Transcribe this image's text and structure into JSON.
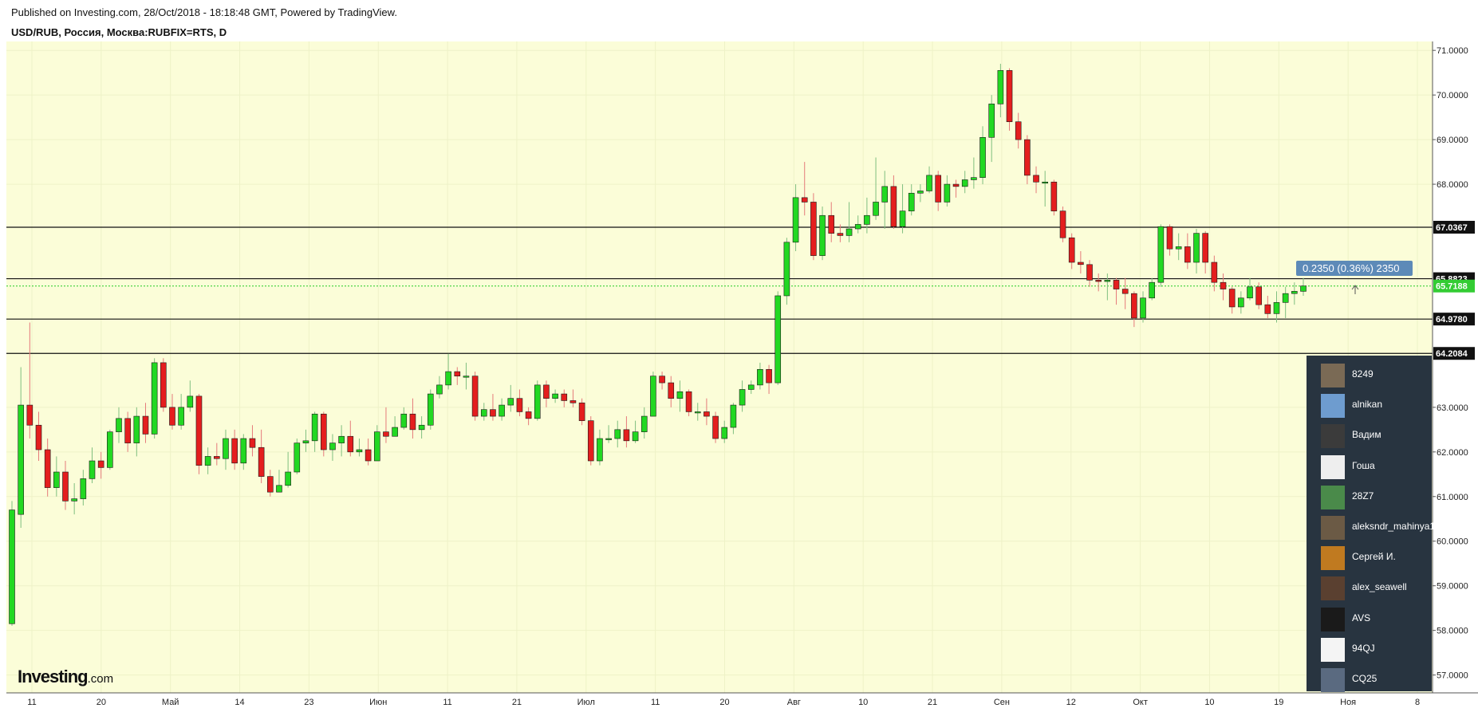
{
  "header": {
    "published": "Published on Investing.com, 28/Oct/2018 - 18:18:48 GMT, Powered by TradingView.",
    "symbol": "USD/RUB, Россия, Москва:RUBFIX=RTS, D"
  },
  "logo": {
    "main": "Investing",
    "suffix": ".com"
  },
  "colors": {
    "background": "#fbfdd8",
    "up": "#22d822",
    "down": "#e41e1e",
    "grid": "#eef2c7",
    "hline": "#111111",
    "last_line": "#22cc22",
    "badge": "#5d8ab8",
    "last_label_bg": "#33cc33"
  },
  "chart_data": {
    "type": "candlestick",
    "ylim": [
      56.6,
      71.2
    ],
    "x_ticks": [
      "11",
      "20",
      "Май",
      "14",
      "23",
      "Июн",
      "11",
      "21",
      "Июл",
      "11",
      "20",
      "Авг",
      "10",
      "21",
      "Сен",
      "12",
      "Окт",
      "10",
      "19",
      "Ноя",
      "8"
    ],
    "y_ticks": [
      "71.0000",
      "70.0000",
      "69.0000",
      "68.0000",
      "63.0000",
      "62.0000",
      "61.0000",
      "60.0000",
      "59.0000",
      "58.0000",
      "57.0000"
    ],
    "horizontal_lines": [
      {
        "label": "67.0367",
        "value": 67.0367
      },
      {
        "label": "65.8823",
        "value": 65.8823
      },
      {
        "label": "64.9780",
        "value": 64.978
      },
      {
        "label": "64.2084",
        "value": 64.2084
      }
    ],
    "last_price": {
      "label": "65.7188",
      "value": 65.7188
    },
    "change_badge": "0.2350 (0.36%) 2350",
    "candles": [
      [
        58.15,
        60.7,
        60.9,
        58.1
      ],
      [
        60.6,
        63.05,
        63.9,
        60.3
      ],
      [
        63.05,
        62.6,
        64.9,
        62.3
      ],
      [
        62.6,
        62.05,
        62.9,
        61.8
      ],
      [
        62.05,
        61.2,
        62.3,
        61.0
      ],
      [
        61.2,
        61.55,
        61.9,
        61.0
      ],
      [
        61.55,
        60.9,
        61.8,
        60.7
      ],
      [
        60.9,
        60.95,
        61.3,
        60.6
      ],
      [
        60.95,
        61.4,
        61.6,
        60.8
      ],
      [
        61.4,
        61.8,
        62.1,
        61.3
      ],
      [
        61.8,
        61.65,
        62.0,
        61.4
      ],
      [
        61.65,
        62.45,
        62.5,
        61.6
      ],
      [
        62.45,
        62.75,
        63.0,
        62.2
      ],
      [
        62.75,
        62.2,
        62.9,
        62.0
      ],
      [
        62.2,
        62.8,
        63.0,
        61.9
      ],
      [
        62.8,
        62.4,
        63.1,
        62.2
      ],
      [
        62.4,
        64.0,
        64.1,
        62.3
      ],
      [
        64.0,
        63.0,
        64.1,
        62.9
      ],
      [
        63.0,
        62.6,
        63.3,
        62.5
      ],
      [
        62.6,
        63.0,
        63.3,
        62.5
      ],
      [
        63.0,
        63.25,
        63.6,
        62.9
      ],
      [
        63.25,
        61.7,
        63.3,
        61.5
      ],
      [
        61.7,
        61.9,
        62.1,
        61.5
      ],
      [
        61.9,
        61.85,
        62.2,
        61.7
      ],
      [
        61.85,
        62.3,
        62.5,
        61.6
      ],
      [
        62.3,
        61.75,
        62.5,
        61.6
      ],
      [
        61.75,
        62.3,
        62.4,
        61.6
      ],
      [
        62.3,
        62.1,
        62.6,
        61.9
      ],
      [
        62.1,
        61.45,
        62.5,
        61.3
      ],
      [
        61.45,
        61.1,
        61.6,
        61.0
      ],
      [
        61.1,
        61.25,
        61.6,
        61.1
      ],
      [
        61.25,
        61.55,
        62.0,
        61.2
      ],
      [
        61.55,
        62.2,
        62.3,
        61.5
      ],
      [
        62.2,
        62.25,
        62.5,
        62.0
      ],
      [
        62.25,
        62.85,
        62.9,
        62.0
      ],
      [
        62.85,
        62.05,
        62.9,
        61.9
      ],
      [
        62.05,
        62.2,
        62.4,
        61.8
      ],
      [
        62.2,
        62.35,
        62.6,
        61.9
      ],
      [
        62.35,
        62.0,
        62.7,
        61.9
      ],
      [
        62.0,
        62.05,
        62.3,
        61.9
      ],
      [
        62.05,
        61.8,
        62.3,
        61.7
      ],
      [
        61.8,
        62.45,
        62.6,
        61.8
      ],
      [
        62.45,
        62.35,
        63.0,
        62.2
      ],
      [
        62.35,
        62.55,
        62.8,
        62.4
      ],
      [
        62.55,
        62.85,
        63.0,
        62.5
      ],
      [
        62.85,
        62.5,
        63.2,
        62.3
      ],
      [
        62.5,
        62.6,
        62.8,
        62.3
      ],
      [
        62.6,
        63.3,
        63.4,
        62.5
      ],
      [
        63.3,
        63.5,
        63.7,
        63.2
      ],
      [
        63.5,
        63.8,
        64.2,
        63.4
      ],
      [
        63.8,
        63.7,
        63.9,
        63.5
      ],
      [
        63.7,
        63.7,
        64.0,
        63.4
      ],
      [
        63.7,
        62.8,
        63.8,
        62.7
      ],
      [
        62.8,
        62.95,
        63.1,
        62.7
      ],
      [
        62.95,
        62.8,
        63.3,
        62.7
      ],
      [
        62.8,
        63.05,
        63.2,
        62.7
      ],
      [
        63.05,
        63.2,
        63.5,
        62.9
      ],
      [
        63.2,
        62.9,
        63.4,
        62.8
      ],
      [
        62.9,
        62.75,
        63.0,
        62.6
      ],
      [
        62.75,
        63.5,
        63.6,
        62.7
      ],
      [
        63.5,
        63.2,
        63.6,
        63.0
      ],
      [
        63.2,
        63.3,
        63.4,
        63.1
      ],
      [
        63.3,
        63.15,
        63.4,
        63.0
      ],
      [
        63.15,
        63.1,
        63.4,
        63.0
      ],
      [
        63.1,
        62.7,
        63.2,
        62.6
      ],
      [
        62.7,
        61.8,
        62.8,
        61.7
      ],
      [
        61.8,
        62.3,
        62.5,
        61.7
      ],
      [
        62.3,
        62.3,
        62.6,
        62.2
      ],
      [
        62.3,
        62.5,
        62.7,
        62.1
      ],
      [
        62.5,
        62.25,
        62.8,
        62.1
      ],
      [
        62.25,
        62.45,
        62.7,
        62.2
      ],
      [
        62.45,
        62.8,
        63.0,
        62.3
      ],
      [
        62.8,
        63.7,
        63.8,
        62.8
      ],
      [
        63.7,
        63.55,
        63.8,
        63.4
      ],
      [
        63.55,
        63.2,
        63.7,
        63.0
      ],
      [
        63.2,
        63.35,
        63.6,
        62.9
      ],
      [
        63.35,
        62.9,
        63.4,
        62.8
      ],
      [
        62.9,
        62.9,
        63.1,
        62.7
      ],
      [
        62.9,
        62.8,
        63.2,
        62.6
      ],
      [
        62.8,
        62.3,
        62.9,
        62.2
      ],
      [
        62.3,
        62.55,
        62.7,
        62.2
      ],
      [
        62.55,
        63.05,
        63.1,
        62.4
      ],
      [
        63.05,
        63.4,
        63.6,
        62.9
      ],
      [
        63.4,
        63.5,
        63.6,
        63.3
      ],
      [
        63.5,
        63.85,
        64.0,
        63.4
      ],
      [
        63.85,
        63.55,
        63.95,
        63.3
      ],
      [
        63.55,
        65.5,
        65.6,
        63.5
      ],
      [
        65.5,
        66.7,
        66.8,
        65.3
      ],
      [
        66.7,
        67.7,
        68.0,
        66.5
      ],
      [
        67.7,
        67.6,
        68.5,
        67.3
      ],
      [
        67.6,
        66.4,
        67.8,
        66.3
      ],
      [
        66.4,
        67.3,
        67.5,
        66.3
      ],
      [
        67.3,
        66.9,
        67.6,
        66.7
      ],
      [
        66.9,
        66.85,
        67.1,
        66.7
      ],
      [
        66.85,
        67.0,
        67.6,
        66.7
      ],
      [
        67.0,
        67.1,
        67.3,
        66.9
      ],
      [
        67.1,
        67.3,
        67.7,
        66.9
      ],
      [
        67.3,
        67.6,
        68.6,
        67.2
      ],
      [
        67.6,
        67.95,
        68.3,
        67.0
      ],
      [
        67.95,
        67.05,
        68.2,
        67.0
      ],
      [
        67.05,
        67.4,
        68.0,
        66.9
      ],
      [
        67.4,
        67.8,
        68.0,
        67.3
      ],
      [
        67.8,
        67.85,
        68.0,
        67.6
      ],
      [
        67.85,
        68.2,
        68.4,
        67.8
      ],
      [
        68.2,
        67.6,
        68.3,
        67.4
      ],
      [
        67.6,
        68.0,
        68.2,
        67.5
      ],
      [
        68.0,
        67.95,
        68.1,
        67.7
      ],
      [
        67.95,
        68.1,
        68.3,
        67.8
      ],
      [
        68.1,
        68.15,
        68.6,
        67.9
      ],
      [
        68.15,
        69.05,
        69.3,
        68.0
      ],
      [
        69.05,
        69.8,
        70.0,
        68.5
      ],
      [
        69.8,
        70.55,
        70.7,
        69.5
      ],
      [
        70.55,
        69.4,
        70.6,
        69.2
      ],
      [
        69.4,
        69.0,
        69.6,
        68.8
      ],
      [
        69.0,
        68.2,
        69.1,
        68.0
      ],
      [
        68.2,
        68.05,
        68.4,
        67.8
      ],
      [
        68.05,
        68.05,
        68.3,
        67.5
      ],
      [
        68.05,
        67.4,
        68.1,
        67.3
      ],
      [
        67.4,
        66.8,
        67.5,
        66.7
      ],
      [
        66.8,
        66.25,
        66.9,
        66.1
      ],
      [
        66.25,
        66.2,
        66.5,
        66.0
      ],
      [
        66.2,
        65.85,
        66.3,
        65.7
      ],
      [
        65.85,
        65.82,
        66.0,
        65.6
      ],
      [
        65.82,
        65.85,
        66.0,
        65.4
      ],
      [
        65.85,
        65.65,
        65.9,
        65.3
      ],
      [
        65.65,
        65.55,
        65.9,
        65.2
      ],
      [
        65.55,
        65.0,
        65.6,
        64.8
      ],
      [
        65.0,
        65.45,
        65.6,
        64.9
      ],
      [
        65.45,
        65.8,
        65.9,
        65.4
      ],
      [
        65.8,
        67.05,
        67.1,
        65.7
      ],
      [
        67.05,
        66.55,
        67.1,
        66.4
      ],
      [
        66.55,
        66.6,
        66.9,
        66.3
      ],
      [
        66.6,
        66.25,
        66.9,
        66.1
      ],
      [
        66.25,
        66.9,
        67.0,
        66.0
      ],
      [
        66.9,
        66.25,
        66.95,
        66.0
      ],
      [
        66.25,
        65.8,
        66.4,
        65.6
      ],
      [
        65.8,
        65.65,
        66.0,
        65.4
      ],
      [
        65.65,
        65.25,
        65.7,
        65.1
      ],
      [
        65.25,
        65.45,
        65.6,
        65.1
      ],
      [
        65.45,
        65.7,
        65.9,
        65.4
      ],
      [
        65.7,
        65.3,
        65.8,
        65.2
      ],
      [
        65.3,
        65.1,
        65.5,
        65.0
      ],
      [
        65.1,
        65.35,
        65.6,
        64.9
      ],
      [
        65.35,
        65.55,
        65.7,
        65.0
      ],
      [
        65.55,
        65.6,
        65.8,
        65.3
      ],
      [
        65.6,
        65.72,
        65.9,
        65.5
      ]
    ]
  },
  "users_panel": {
    "users": [
      {
        "name": "8249",
        "avatar_color": "#7a6a55"
      },
      {
        "name": "alnikan",
        "avatar_color": "#6e9ccf"
      },
      {
        "name": "Вадим",
        "avatar_color": "#3b3b3b"
      },
      {
        "name": "Гоша",
        "avatar_color": "#eeeeee"
      },
      {
        "name": "28Z7",
        "avatar_color": "#4a8a4a"
      },
      {
        "name": "aleksndr_mahinya1",
        "avatar_color": "#6b5a45"
      },
      {
        "name": "Сергей И.",
        "avatar_color": "#c07a20"
      },
      {
        "name": "alex_seawell",
        "avatar_color": "#5a4030"
      },
      {
        "name": "AVS",
        "avatar_color": "#1a1a1a"
      },
      {
        "name": "94QJ",
        "avatar_color": "#f4f4f4"
      },
      {
        "name": "CQ25",
        "avatar_color": "#5a6a80"
      }
    ]
  }
}
